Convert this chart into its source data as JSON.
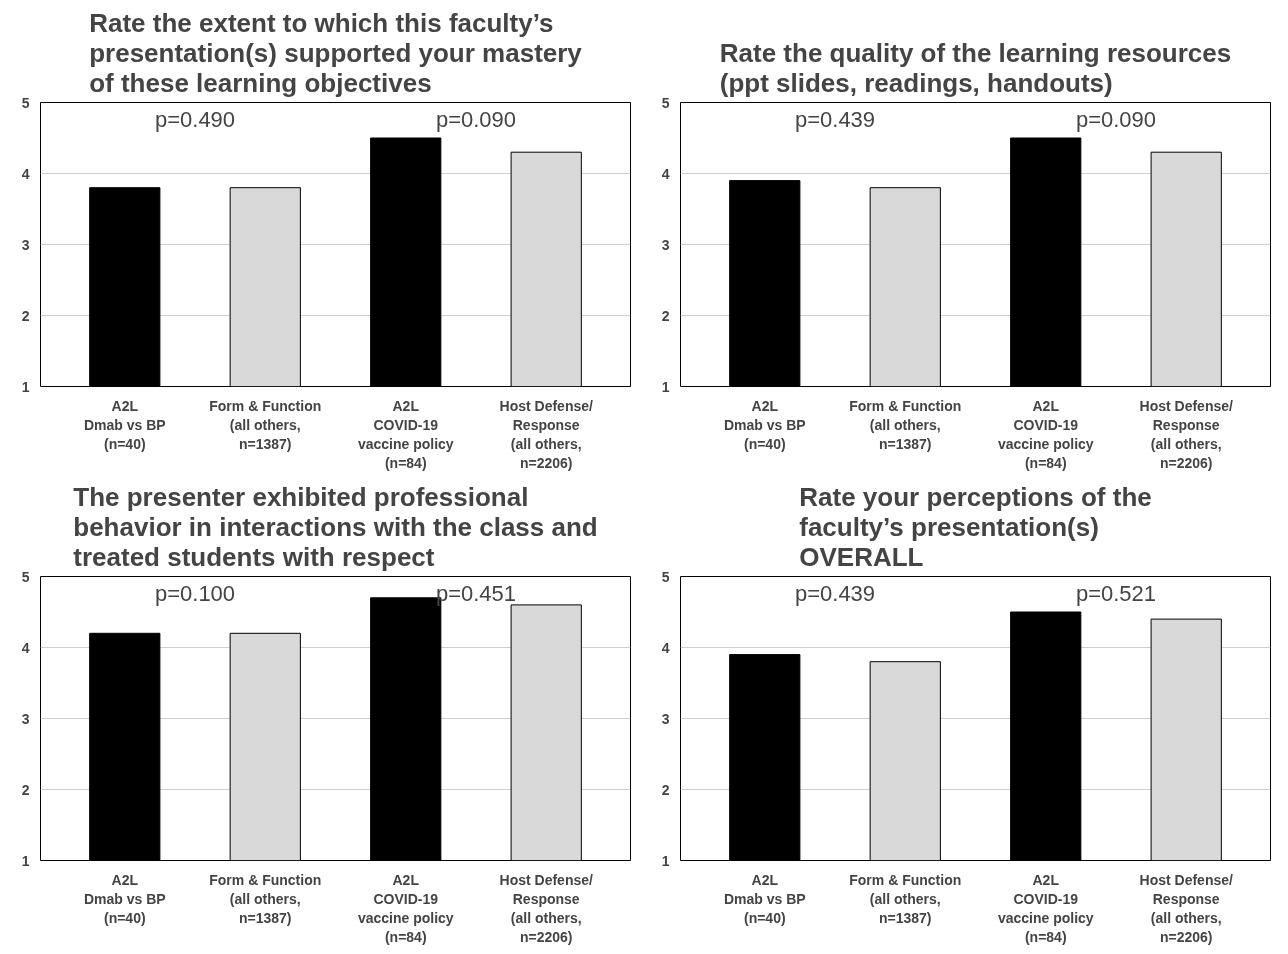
{
  "chart_data": [
    {
      "type": "bar",
      "title": "Rate the extent to which this faculty’s\npresentation(s) supported your mastery\nof these learning objectives",
      "categories": [
        "A2L\nDmab vs BP\n(n=40)",
        "Form & Function\n(all others,\nn=1387)",
        "A2L\nCOVID-19\nvaccine policy\n(n=84)",
        "Host Defense/\nResponse\n(all others,\nn=2206)"
      ],
      "values": [
        3.8,
        3.8,
        4.5,
        4.3
      ],
      "colors": [
        "#000000",
        "#d9d9d9",
        "#000000",
        "#d9d9d9"
      ],
      "ylim": [
        1,
        5
      ],
      "yticks": [
        1,
        2,
        3,
        4,
        5
      ],
      "grid": "y",
      "annotations": [
        "p=0.490",
        "p=0.090"
      ]
    },
    {
      "type": "bar",
      "title": "Rate the quality of the learning resources\n(ppt slides, readings, handouts)",
      "categories": [
        "A2L\nDmab vs BP\n(n=40)",
        "Form & Function\n(all others,\nn=1387)",
        "A2L\nCOVID-19\nvaccine policy\n(n=84)",
        "Host Defense/\nResponse\n(all others,\nn=2206)"
      ],
      "values": [
        3.9,
        3.8,
        4.5,
        4.3
      ],
      "colors": [
        "#000000",
        "#d9d9d9",
        "#000000",
        "#d9d9d9"
      ],
      "ylim": [
        1,
        5
      ],
      "yticks": [
        1,
        2,
        3,
        4,
        5
      ],
      "grid": "y",
      "annotations": [
        "p=0.439",
        "p=0.090"
      ]
    },
    {
      "type": "bar",
      "title": "The presenter exhibited professional\nbehavior in interactions with the class and\ntreated students with respect",
      "categories": [
        "A2L\nDmab vs BP\n(n=40)",
        "Form & Function\n(all others,\nn=1387)",
        "A2L\nCOVID-19\nvaccine policy\n(n=84)",
        "Host Defense/\nResponse\n(all others,\nn=2206)"
      ],
      "values": [
        4.2,
        4.2,
        4.7,
        4.6
      ],
      "colors": [
        "#000000",
        "#d9d9d9",
        "#000000",
        "#d9d9d9"
      ],
      "ylim": [
        1,
        5
      ],
      "yticks": [
        1,
        2,
        3,
        4,
        5
      ],
      "grid": "y",
      "annotations": [
        "p=0.100",
        "p=0.451"
      ]
    },
    {
      "type": "bar",
      "title": "Rate your perceptions of the\nfaculty’s presentation(s)\nOVERALL",
      "categories": [
        "A2L\nDmab vs BP\n(n=40)",
        "Form & Function\n(all others,\nn=1387)",
        "A2L\nCOVID-19\nvaccine policy\n(n=84)",
        "Host Defense/\nResponse\n(all others,\nn=2206)"
      ],
      "values": [
        3.9,
        3.8,
        4.5,
        4.4
      ],
      "colors": [
        "#000000",
        "#d9d9d9",
        "#000000",
        "#d9d9d9"
      ],
      "ylim": [
        1,
        5
      ],
      "yticks": [
        1,
        2,
        3,
        4,
        5
      ],
      "grid": "y",
      "annotations": [
        "p=0.439",
        "p=0.521"
      ]
    }
  ]
}
